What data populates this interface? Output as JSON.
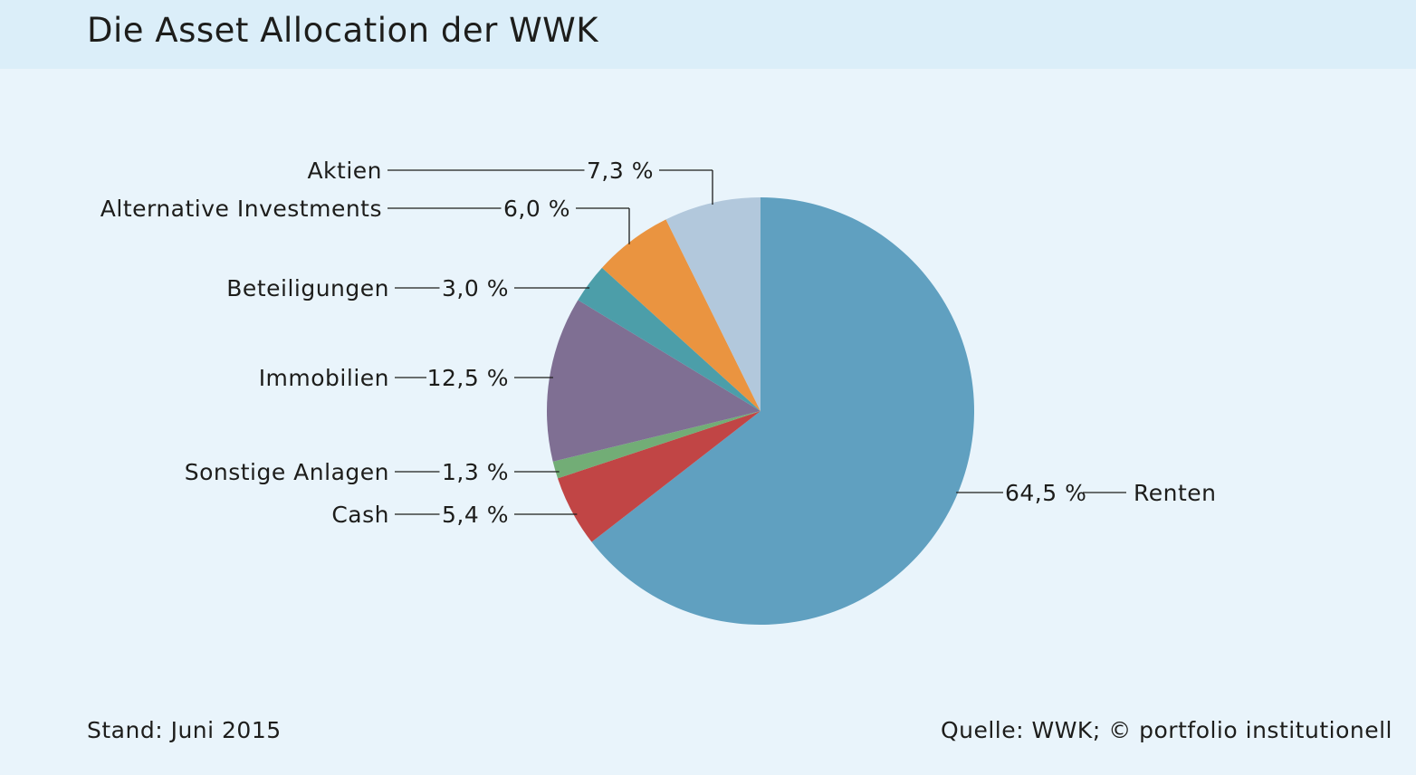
{
  "title": "Die Asset Allocation der WWK",
  "footer": {
    "date_note": "Stand: Juni 2015",
    "source": "Quelle: WWK; © portfolio institutionell"
  },
  "chart_data": {
    "type": "pie",
    "title": "Die Asset Allocation der WWK",
    "start_angle_deg": 0,
    "direction": "clockwise",
    "slices": [
      {
        "label": "Renten",
        "value": 64.5,
        "display": "64,5 %",
        "color": "#60a0c0"
      },
      {
        "label": "Cash",
        "value": 5.4,
        "display": "5,4 %",
        "color": "#c14545"
      },
      {
        "label": "Sonstige Anlagen",
        "value": 1.3,
        "display": "1,3 %",
        "color": "#72ad76"
      },
      {
        "label": "Immobilien",
        "value": 12.5,
        "display": "12,5 %",
        "color": "#7f6f93"
      },
      {
        "label": "Beteiligungen",
        "value": 3.0,
        "display": "3,0 %",
        "color": "#4c9ea9"
      },
      {
        "label": "Alternative Investments",
        "value": 6.0,
        "display": "6,0 %",
        "color": "#ea9440"
      },
      {
        "label": "Aktien",
        "value": 7.3,
        "display": "7,3 %",
        "color": "#b2c8dc"
      }
    ]
  }
}
